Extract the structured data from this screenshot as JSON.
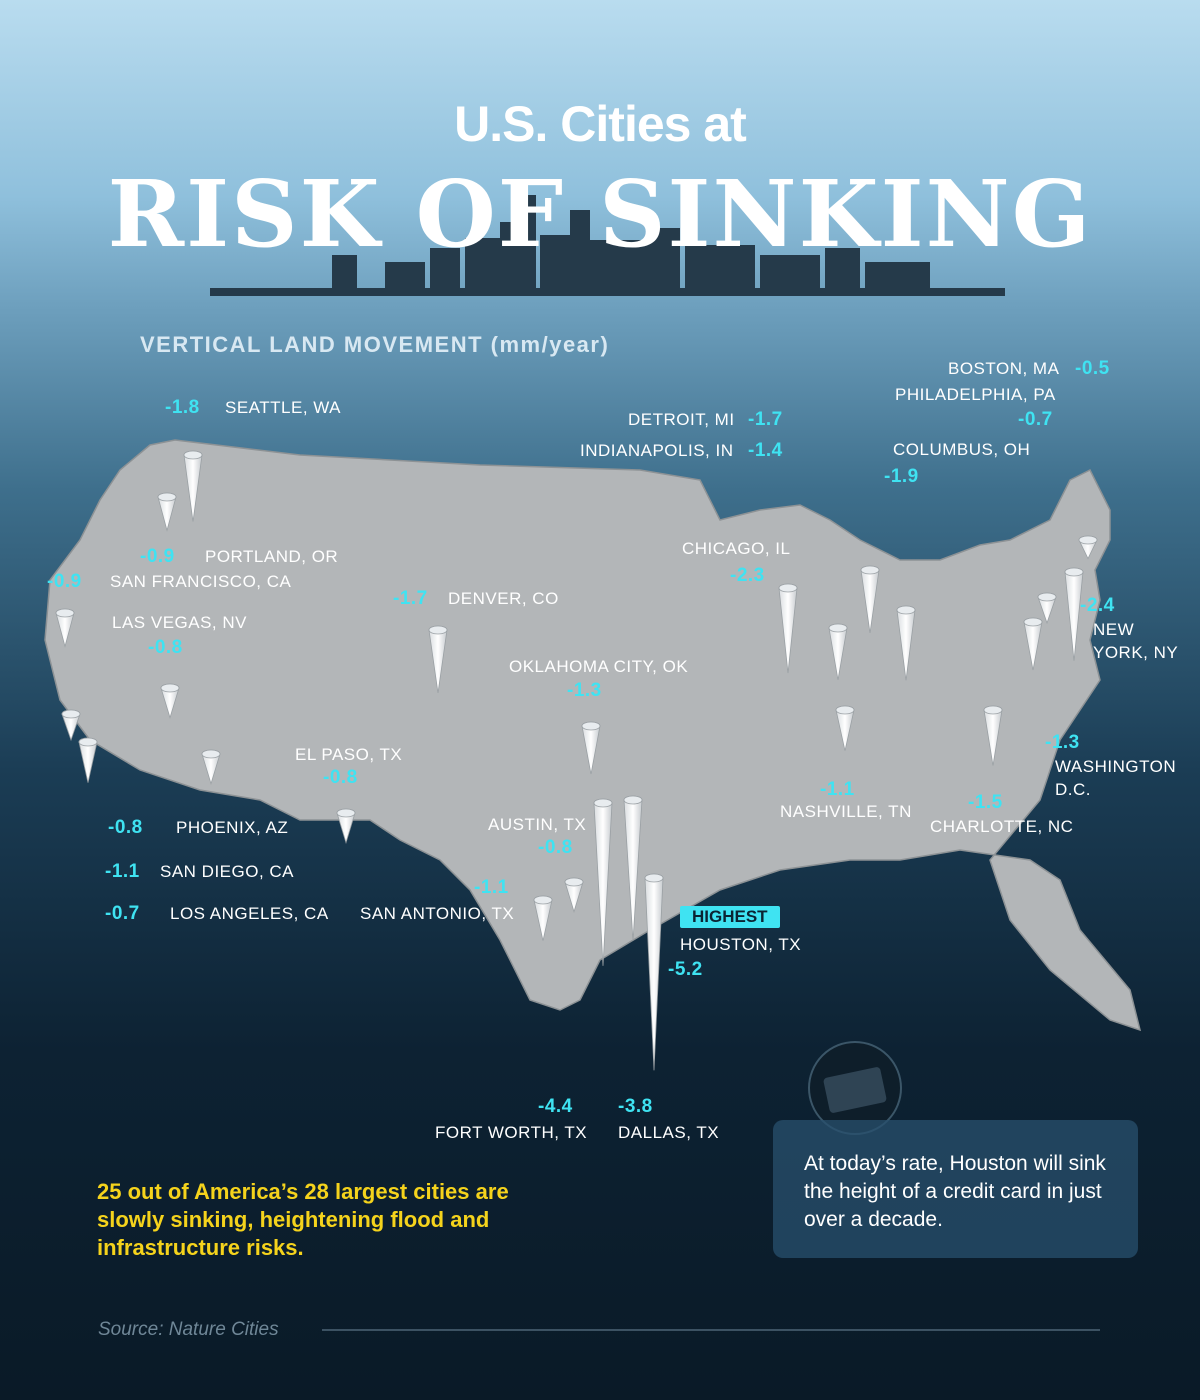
{
  "header": {
    "title_top": "U.S. Cities at",
    "title_main": "RISK OF SINKING",
    "subtitle": "VERTICAL LAND MOVEMENT (mm/year)"
  },
  "cities": [
    {
      "name": "SEATTLE, WA",
      "value": -1.8
    },
    {
      "name": "PORTLAND, OR",
      "value": -0.9
    },
    {
      "name": "SAN FRANCISCO, CA",
      "value": -0.9
    },
    {
      "name": "LAS VEGAS, NV",
      "value": -0.8
    },
    {
      "name": "LOS ANGELES, CA",
      "value": -0.7
    },
    {
      "name": "SAN DIEGO, CA",
      "value": -1.1
    },
    {
      "name": "PHOENIX, AZ",
      "value": -0.8
    },
    {
      "name": "DENVER, CO",
      "value": -1.7
    },
    {
      "name": "EL PASO, TX",
      "value": -0.8
    },
    {
      "name": "OKLAHOMA CITY, OK",
      "value": -1.3
    },
    {
      "name": "AUSTIN, TX",
      "value": -0.8
    },
    {
      "name": "SAN ANTONIO, TX",
      "value": -1.1
    },
    {
      "name": "FORT WORTH, TX",
      "value": -4.4
    },
    {
      "name": "DALLAS, TX",
      "value": -3.8
    },
    {
      "name": "HOUSTON, TX",
      "value": -5.2
    },
    {
      "name": "CHICAGO, IL",
      "value": -2.3
    },
    {
      "name": "INDIANAPOLIS, IN",
      "value": -1.4
    },
    {
      "name": "DETROIT, MI",
      "value": -1.7
    },
    {
      "name": "COLUMBUS, OH",
      "value": -1.9
    },
    {
      "name": "NASHVILLE, TN",
      "value": -1.1
    },
    {
      "name": "CHARLOTTE, NC",
      "value": -1.5
    },
    {
      "name": "WASHINGTON D.C.",
      "value": -1.3
    },
    {
      "name": "PHILADELPHIA, PA",
      "value": -0.7
    },
    {
      "name": "NEW YORK, NY",
      "value": -2.4
    },
    {
      "name": "BOSTON, MA",
      "value": -0.5
    }
  ],
  "highest_badge": "HIGHEST",
  "summary": "25 out of America’s 28 largest cities are slowly sinking, heightening flood and infrastructure risks.",
  "callout": "At today’s rate, Houston will sink the height of a credit card in just over a decade.",
  "source": "Source: Nature Cities"
}
